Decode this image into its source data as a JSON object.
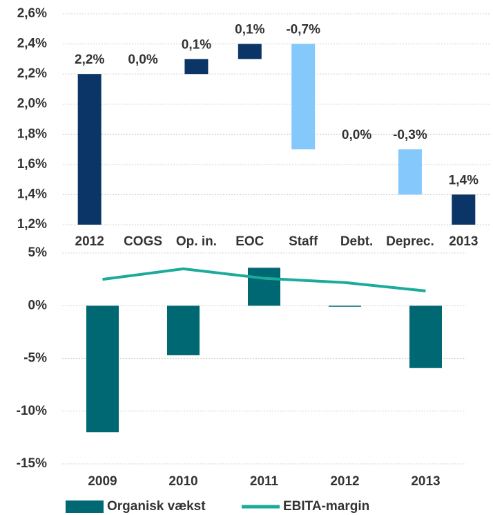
{
  "chart_data": [
    {
      "type": "waterfall",
      "categories": [
        "2012",
        "COGS",
        "Op. in.",
        "EOC",
        "Staff",
        "Debt.",
        "Deprec.",
        "2013"
      ],
      "values": [
        2.2,
        0.0,
        0.1,
        0.1,
        -0.7,
        0.0,
        -0.3,
        1.4
      ],
      "value_labels": [
        "2,2%",
        "0,0%",
        "0,1%",
        "0,1%",
        "-0,7%",
        "0,0%",
        "-0,3%",
        "1,4%"
      ],
      "color": "#0b3566",
      "decrease_color": "#85c8fb",
      "ylim": [
        1.2,
        2.6
      ],
      "yticks": [
        {
          "value": 1.2,
          "label": "1,2%"
        },
        {
          "value": 1.4,
          "label": "1,4%"
        },
        {
          "value": 1.6,
          "label": "1,6%"
        },
        {
          "value": 1.8,
          "label": "1,8%"
        },
        {
          "value": 2.0,
          "label": "2,0%"
        },
        {
          "value": 2.2,
          "label": "2,2%"
        },
        {
          "value": 2.4,
          "label": "2,4%"
        },
        {
          "value": 2.6,
          "label": "2,6%"
        }
      ],
      "grid": true
    },
    {
      "type": "bar",
      "categories": [
        "2009",
        "2010",
        "2011",
        "2012",
        "2013"
      ],
      "series": [
        {
          "name": "Organisk vækst",
          "type": "bar",
          "color": "#006872",
          "values": [
            -12,
            -4.7,
            3.6,
            -0.1,
            -5.9
          ]
        },
        {
          "name": "EBITA-margin",
          "type": "line",
          "color": "#1aab9b",
          "values": [
            2.5,
            3.5,
            2.6,
            2.2,
            1.4
          ]
        }
      ],
      "ylim": [
        -15,
        5
      ],
      "yticks": [
        {
          "value": -15,
          "label": "-15%"
        },
        {
          "value": -10,
          "label": "-10%"
        },
        {
          "value": -5,
          "label": "-5%"
        },
        {
          "value": 0,
          "label": "0%"
        },
        {
          "value": 5,
          "label": "5%"
        }
      ],
      "grid": true,
      "legend": "bottom"
    }
  ]
}
